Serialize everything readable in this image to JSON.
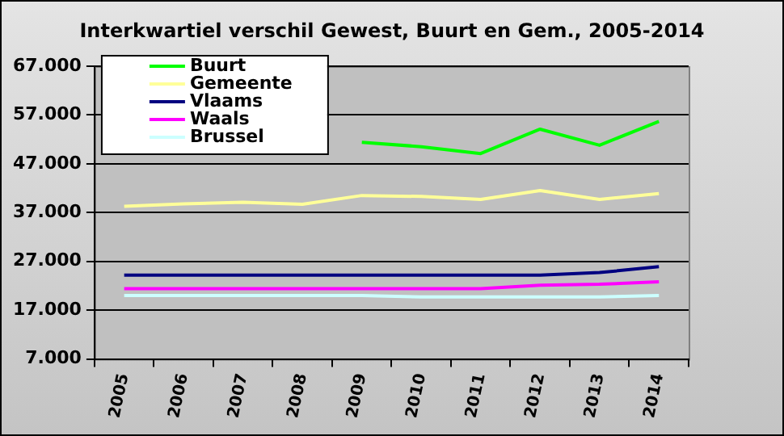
{
  "chart_data": {
    "type": "line",
    "title": "Interkwartiel verschil Gewest, Buurt en Gem., 2005-2014",
    "categories": [
      "2005",
      "2006",
      "2007",
      "2008",
      "2009",
      "2010",
      "2011",
      "2012",
      "2013",
      "2014"
    ],
    "series": [
      {
        "name": "Buurt",
        "color": "#00ff00",
        "values": [
          null,
          null,
          null,
          null,
          51400,
          50500,
          49100,
          54100,
          50800,
          55700
        ]
      },
      {
        "name": "Gemeente",
        "color": "#ffff99",
        "values": [
          38300,
          38800,
          39100,
          38700,
          40500,
          40300,
          39700,
          41500,
          39700,
          40900
        ]
      },
      {
        "name": "Vlaams",
        "color": "#000080",
        "values": [
          24200,
          24200,
          24200,
          24200,
          24200,
          24200,
          24200,
          24200,
          24700,
          25900
        ]
      },
      {
        "name": "Waals",
        "color": "#ff00ff",
        "values": [
          21400,
          21400,
          21400,
          21400,
          21400,
          21400,
          21400,
          22100,
          22300,
          22800
        ]
      },
      {
        "name": "Brussel",
        "color": "#ccffff",
        "values": [
          20000,
          20000,
          20000,
          20000,
          20000,
          19700,
          19700,
          19700,
          19700,
          20000
        ]
      }
    ],
    "ylim": [
      7000,
      67000
    ],
    "yticks": [
      {
        "value": 7000,
        "label": "7.000"
      },
      {
        "value": 17000,
        "label": "17.000"
      },
      {
        "value": 27000,
        "label": "27.000"
      },
      {
        "value": 37000,
        "label": "37.000"
      },
      {
        "value": 47000,
        "label": "47.000"
      },
      {
        "value": 57000,
        "label": "57.000"
      },
      {
        "value": 67000,
        "label": "67.000"
      }
    ],
    "grid": "y",
    "legend": "top left",
    "marker": "none",
    "line_style": "solid"
  }
}
